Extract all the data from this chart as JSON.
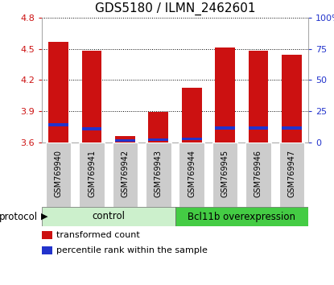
{
  "title": "GDS5180 / ILMN_2462601",
  "samples": [
    "GSM769940",
    "GSM769941",
    "GSM769942",
    "GSM769943",
    "GSM769944",
    "GSM769945",
    "GSM769946",
    "GSM769947"
  ],
  "red_values": [
    4.565,
    4.485,
    3.665,
    3.895,
    4.13,
    4.51,
    4.485,
    4.44
  ],
  "blue_bottom": [
    3.755,
    3.715,
    3.61,
    3.618,
    3.625,
    3.725,
    3.725,
    3.725
  ],
  "blue_heights": [
    0.03,
    0.03,
    0.018,
    0.022,
    0.025,
    0.03,
    0.028,
    0.028
  ],
  "y_min": 3.6,
  "y_max": 4.8,
  "y_ticks": [
    3.6,
    3.9,
    4.2,
    4.5,
    4.8
  ],
  "right_y_ticks": [
    0,
    25,
    50,
    75,
    100
  ],
  "right_y_labels": [
    "0",
    "25",
    "50",
    "75",
    "100%"
  ],
  "control_label": "control",
  "treatment_label": "Bcl11b overexpression",
  "control_color": "#ccf0cc",
  "treatment_color": "#44cc44",
  "bar_color": "#cc1111",
  "blue_color": "#2233cc",
  "legend_red_label": "transformed count",
  "legend_blue_label": "percentile rank within the sample",
  "protocol_label": "protocol",
  "left_tick_color": "#cc1111",
  "right_tick_color": "#2233cc",
  "sample_box_color": "#cccccc",
  "bar_width": 0.6
}
